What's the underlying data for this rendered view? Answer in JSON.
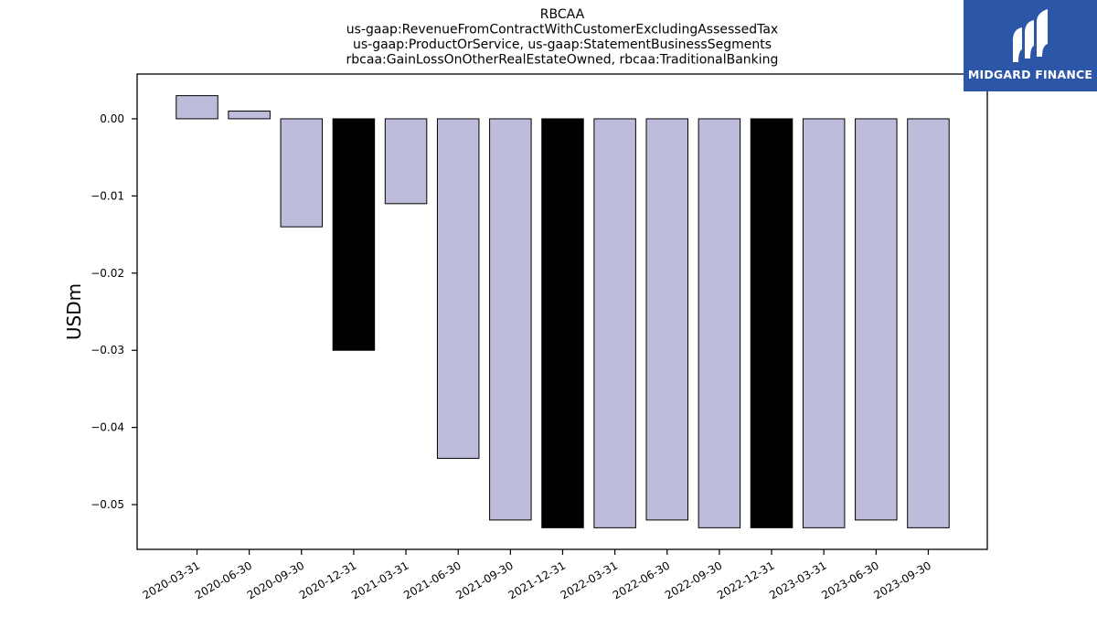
{
  "brand": {
    "name": "MIDGARD FINANCE",
    "background": "#2c56a8",
    "icon": "midgard-logo-icon"
  },
  "chart_data": {
    "type": "bar",
    "title_lines": [
      "RBCAA",
      "us-gaap:RevenueFromContractWithCustomerExcludingAssessedTax",
      "us-gaap:ProductOrService, us-gaap:StatementBusinessSegments",
      "rbcaa:GainLossOnOtherRealEstateOwned, rbcaa:TraditionalBanking"
    ],
    "xlabel": "",
    "ylabel": "USDm",
    "categories": [
      "2020-03-31",
      "2020-06-30",
      "2020-09-30",
      "2020-12-31",
      "2021-03-31",
      "2021-06-30",
      "2021-09-30",
      "2021-12-31",
      "2022-03-31",
      "2022-06-30",
      "2022-09-30",
      "2022-12-31",
      "2023-03-31",
      "2023-06-30",
      "2023-09-30"
    ],
    "values": [
      0.003,
      0.001,
      -0.014,
      -0.03,
      -0.011,
      -0.044,
      -0.052,
      -0.053,
      -0.053,
      -0.052,
      -0.053,
      -0.053,
      -0.053,
      -0.052,
      -0.053
    ],
    "highlight": [
      false,
      false,
      false,
      true,
      false,
      false,
      false,
      true,
      false,
      false,
      false,
      true,
      false,
      false,
      false
    ],
    "colors": {
      "bar": "#bebcdb",
      "highlight": "#000000",
      "edge": "#000000"
    },
    "yticks": [
      0.0,
      -0.01,
      -0.02,
      -0.03,
      -0.04,
      -0.05
    ],
    "ytick_labels": [
      "0.00",
      "−0.01",
      "−0.02",
      "−0.03",
      "−0.04",
      "−0.05"
    ],
    "ylim": [
      -0.0558,
      0.0058
    ],
    "grid": false,
    "legend": "none"
  }
}
